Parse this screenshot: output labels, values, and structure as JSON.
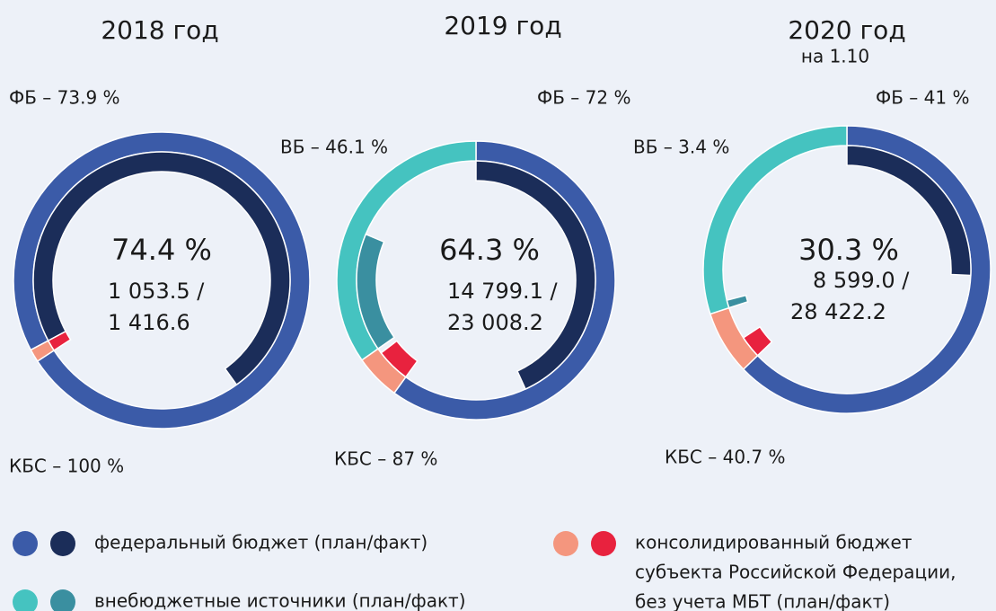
{
  "chart_data": [
    {
      "type": "donut",
      "title": "2018 год",
      "start_angle": 242,
      "center": {
        "value": 74.4,
        "label": "74.4 %"
      },
      "fact": {
        "value": 1053.5,
        "label": "1 053.5 /"
      },
      "plan": {
        "value": 1416.6,
        "label": "1 416.6"
      },
      "series": [
        {
          "key": "ФБ",
          "label": "ФБ – 73.9 %",
          "share": 98.6,
          "percent": 73.9,
          "colors": [
            "#3b5ba8",
            "#1b2d59"
          ]
        },
        {
          "key": "КБС",
          "label": "КБС – 100 %",
          "share": 1.4,
          "percent": 100,
          "colors": [
            "#f4967e",
            "#e8223e"
          ]
        }
      ]
    },
    {
      "type": "donut",
      "title": "2019 год",
      "start_angle": 0,
      "center": {
        "value": 64.3,
        "label": "64.3 %"
      },
      "fact": {
        "value": 14799.1,
        "label": "14 799.1 /"
      },
      "plan": {
        "value": 23008.2,
        "label": "23 008.2"
      },
      "series": [
        {
          "key": "ФБ",
          "label": "ФБ – 72 %",
          "share": 60,
          "percent": 72,
          "colors": [
            "#3b5ba8",
            "#1b2d59"
          ]
        },
        {
          "key": "КБС",
          "label": "КБС – 87 %",
          "share": 5.3,
          "percent": 87,
          "colors": [
            "#f4967e",
            "#e8223e"
          ]
        },
        {
          "key": "ВБ",
          "label": "ВБ – 46.1 %",
          "share": 34.7,
          "percent": 46.1,
          "colors": [
            "#45c3c0",
            "#3a8fa0"
          ]
        }
      ]
    },
    {
      "type": "donut",
      "title": "2020 год",
      "subtitle": "на 1.10",
      "start_angle": 0,
      "center": {
        "value": 30.3,
        "label": "30.3 %"
      },
      "fact": {
        "value": 8599.0,
        "label": "8 599.0 /"
      },
      "plan": {
        "value": 28422.2,
        "label": "28 422.2"
      },
      "series": [
        {
          "key": "ФБ",
          "label": "ФБ – 41 %",
          "share": 62.8,
          "percent": 41,
          "colors": [
            "#3b5ba8",
            "#1b2d59"
          ]
        },
        {
          "key": "КБС",
          "label": "КБС – 40.7 %",
          "share": 7.2,
          "percent": 40.7,
          "colors": [
            "#f4967e",
            "#e8223e"
          ]
        },
        {
          "key": "ВБ",
          "label": "ВБ – 3.4 %",
          "share": 30,
          "percent": 3.4,
          "colors": [
            "#45c3c0",
            "#3a8fa0"
          ]
        }
      ]
    }
  ],
  "legend": [
    {
      "lines": [
        "федеральный бюджет (план/факт)"
      ],
      "colors": [
        "#3b5ba8",
        "#1b2d59"
      ]
    },
    {
      "lines": [
        "внебюджетные источники (план/факт)"
      ],
      "colors": [
        "#45c3c0",
        "#3a8fa0"
      ]
    },
    {
      "lines": [
        "консолидированный бюджет",
        "субъекта Российской Федерации,",
        "без учета МБТ (план/факт)"
      ],
      "colors": [
        "#f4967e",
        "#e8223e"
      ]
    }
  ]
}
